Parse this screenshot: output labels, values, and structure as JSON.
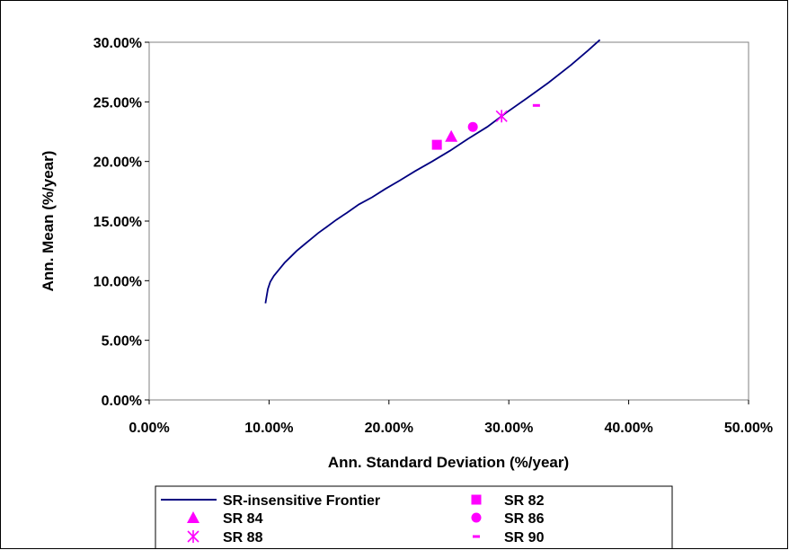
{
  "chart_data": {
    "type": "scatter",
    "title": "",
    "xlabel": "Ann. Standard Deviation (%/year)",
    "ylabel": "Ann. Mean (%/year)",
    "xlim": [
      0,
      0.5
    ],
    "ylim": [
      0,
      0.3
    ],
    "x_ticks": [
      "0.00%",
      "10.00%",
      "20.00%",
      "30.00%",
      "40.00%",
      "50.00%"
    ],
    "y_ticks": [
      "0.00%",
      "5.00%",
      "10.00%",
      "15.00%",
      "20.00%",
      "25.00%",
      "30.00%"
    ],
    "grid": false,
    "legend_position": "bottom",
    "accent_color": "#ff00ff",
    "line_color": "#000080",
    "series": [
      {
        "name": "SR-insensitive Frontier",
        "kind": "line",
        "x": [
          0.097,
          0.098,
          0.099,
          0.101,
          0.104,
          0.108,
          0.113,
          0.118,
          0.123,
          0.129,
          0.135,
          0.141,
          0.148,
          0.156,
          0.165,
          0.175,
          0.186,
          0.197,
          0.209,
          0.222,
          0.236,
          0.251,
          0.266,
          0.282,
          0.298,
          0.315,
          0.333,
          0.352,
          0.366,
          0.376
        ],
        "y": [
          0.081,
          0.087,
          0.093,
          0.099,
          0.104,
          0.109,
          0.115,
          0.12,
          0.125,
          0.13,
          0.135,
          0.14,
          0.145,
          0.151,
          0.157,
          0.164,
          0.17,
          0.177,
          0.184,
          0.192,
          0.2,
          0.209,
          0.219,
          0.229,
          0.241,
          0.253,
          0.266,
          0.281,
          0.293,
          0.302
        ]
      },
      {
        "name": "SR 82",
        "kind": "marker",
        "marker": "square",
        "x": [
          0.24
        ],
        "y": [
          0.214
        ]
      },
      {
        "name": "SR 84",
        "kind": "marker",
        "marker": "triangle",
        "x": [
          0.252
        ],
        "y": [
          0.221
        ]
      },
      {
        "name": "SR 86",
        "kind": "marker",
        "marker": "circle",
        "x": [
          0.27
        ],
        "y": [
          0.229
        ]
      },
      {
        "name": "SR 88",
        "kind": "marker",
        "marker": "asterisk",
        "x": [
          0.294
        ],
        "y": [
          0.238
        ]
      },
      {
        "name": "SR 90",
        "kind": "marker",
        "marker": "dash",
        "x": [
          0.323
        ],
        "y": [
          0.247
        ]
      }
    ]
  }
}
